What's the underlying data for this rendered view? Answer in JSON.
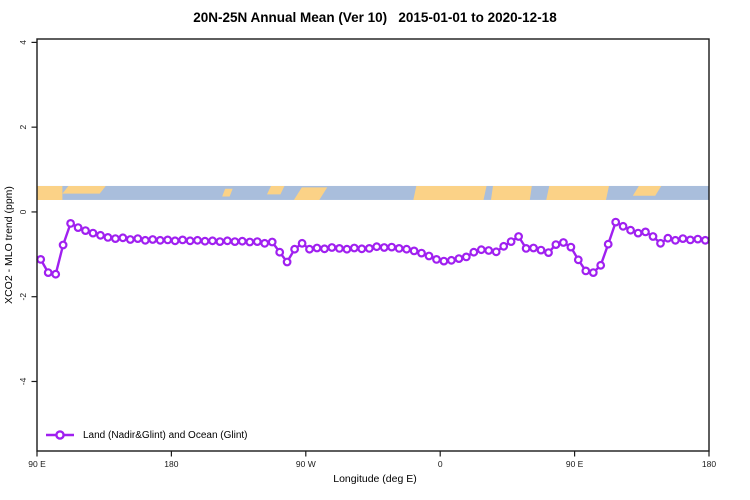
{
  "title": "20N-25N Annual Mean (Ver 10)   2015-01-01 to 2020-12-18",
  "colors": {
    "series": "#A020F0",
    "ocean": "#A9BEDC",
    "land": "#FBD287",
    "axis": "#1A1A1A",
    "marker_fill": "#FFFFFF",
    "background": "#FFFFFF"
  },
  "chart_data": {
    "type": "line",
    "title": "20N-25N Annual Mean (Ver 10)   2015-01-01 to 2020-12-18",
    "xlabel": "Longitude (deg E)",
    "ylabel": "XCO2 - MLO trend (ppm)",
    "grid": false,
    "legend_position": "bottom-left",
    "x_axis": {
      "note": "longitude axis wraps eastward starting at 90E; deg = degrees east of 90E",
      "domain_deg": [
        0,
        450
      ],
      "ticks": [
        {
          "deg": 0,
          "label": "90 E"
        },
        {
          "deg": 90,
          "label": "180"
        },
        {
          "deg": 180,
          "label": "90 W"
        },
        {
          "deg": 270,
          "label": "0"
        },
        {
          "deg": 360,
          "label": "90 E"
        },
        {
          "deg": 450,
          "label": "180"
        }
      ]
    },
    "y_axis": {
      "range": [
        -5.64,
        4.08
      ],
      "ticks": [
        4,
        2,
        0,
        -2,
        -4
      ]
    },
    "series": [
      {
        "name": "Land (Nadir&Glint) and Ocean (Glint)",
        "marker": "open-circle",
        "x_start_deg": 2.5,
        "x_step_deg": 5,
        "values": [
          -1.12,
          -1.43,
          -1.47,
          -0.78,
          -0.27,
          -0.37,
          -0.44,
          -0.5,
          -0.55,
          -0.6,
          -0.63,
          -0.61,
          -0.65,
          -0.63,
          -0.67,
          -0.65,
          -0.67,
          -0.66,
          -0.68,
          -0.66,
          -0.68,
          -0.67,
          -0.69,
          -0.68,
          -0.7,
          -0.68,
          -0.7,
          -0.69,
          -0.71,
          -0.7,
          -0.74,
          -0.71,
          -0.95,
          -1.18,
          -0.88,
          -0.74,
          -0.88,
          -0.85,
          -0.87,
          -0.84,
          -0.86,
          -0.88,
          -0.85,
          -0.87,
          -0.86,
          -0.82,
          -0.84,
          -0.83,
          -0.86,
          -0.88,
          -0.92,
          -0.97,
          -1.04,
          -1.12,
          -1.16,
          -1.14,
          -1.1,
          -1.06,
          -0.95,
          -0.89,
          -0.91,
          -0.94,
          -0.81,
          -0.7,
          -0.58,
          -0.86,
          -0.85,
          -0.9,
          -0.96,
          -0.77,
          -0.72,
          -0.83,
          -1.13,
          -1.39,
          -1.43,
          -1.26,
          -0.76,
          -0.24,
          -0.34,
          -0.43,
          -0.5,
          -0.47,
          -0.58,
          -0.74,
          -0.62,
          -0.67,
          -0.63,
          -0.66,
          -0.64,
          -0.67
        ]
      }
    ],
    "map_strip": {
      "note": "land/ocean band for 20N-25N drawn across the plot",
      "y_range_ppm": [
        0.283,
        0.613
      ],
      "land_segments_deg": [
        {
          "d0": 0,
          "d1": 17,
          "t": 0,
          "b": 1,
          "skew": 0
        },
        {
          "d0": 17,
          "d1": 42,
          "t": 0,
          "b": 0.55,
          "skew": 6
        },
        {
          "d0": 124,
          "d1": 129,
          "t": 0.2,
          "b": 0.75,
          "skew": 3
        },
        {
          "d0": 154,
          "d1": 163,
          "t": 0,
          "b": 0.6,
          "skew": 4
        },
        {
          "d0": 172,
          "d1": 189,
          "t": 0.1,
          "b": 1,
          "skew": 8
        },
        {
          "d0": 252,
          "d1": 299,
          "t": 0,
          "b": 1,
          "skew": 3
        },
        {
          "d0": 304,
          "d1": 330,
          "t": 0,
          "b": 1,
          "skew": 2
        },
        {
          "d0": 341,
          "d1": 381,
          "t": 0,
          "b": 1,
          "skew": 3
        },
        {
          "d0": 399,
          "d1": 414,
          "t": 0,
          "b": 0.7,
          "skew": 6
        }
      ]
    },
    "legend": {
      "label": "Land (Nadir&Glint) and Ocean (Glint)"
    }
  }
}
